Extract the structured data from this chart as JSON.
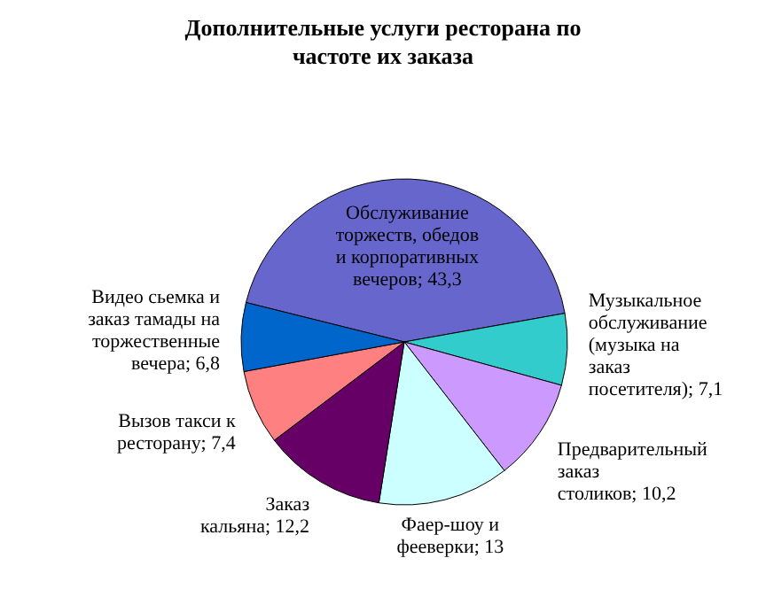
{
  "chart_data": {
    "type": "pie",
    "title": "Дополнительные услуги ресторана по частоте их заказа",
    "categories": [
      "Обслуживание торжеств, обедов и корпоративных вечеров",
      "Музыкальное обслуживание (музыка на заказ посетителя)",
      "Предварительный заказ столиков",
      "Фаер-шоу и фееверки",
      "Заказ кальяна",
      "Вызов такси к ресторану",
      "Видео сьемка и заказ тамады на торжественные вечера"
    ],
    "values": [
      43.3,
      7.1,
      10.2,
      13,
      12.2,
      7.4,
      6.8
    ],
    "value_labels": [
      "43,3",
      "7,1",
      "10,2",
      "13",
      "12,2",
      "7,4",
      "6,8"
    ],
    "colors": [
      "#6666cc",
      "#33cccc",
      "#cc99ff",
      "#ccffff",
      "#660066",
      "#ff8080",
      "#0066cc"
    ]
  }
}
